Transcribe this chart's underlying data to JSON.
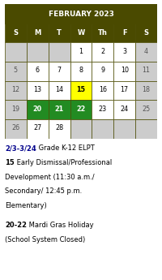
{
  "title": "FEBRUARY 2023",
  "title_bg": "#4a4a00",
  "title_color": "#ffffff",
  "days_header": [
    "S",
    "M",
    "T",
    "W",
    "Th",
    "F",
    "S"
  ],
  "header_bg": "#4a4a00",
  "header_color": "#ffffff",
  "weeks": [
    [
      null,
      null,
      null,
      1,
      2,
      3,
      4
    ],
    [
      5,
      6,
      7,
      8,
      9,
      10,
      11
    ],
    [
      12,
      13,
      14,
      15,
      16,
      17,
      18
    ],
    [
      19,
      20,
      21,
      22,
      23,
      24,
      25
    ],
    [
      26,
      27,
      28,
      null,
      null,
      null,
      null
    ]
  ],
  "cell_colors": {
    "15": "#ffff00",
    "20": "#228b22",
    "21": "#228b22",
    "22": "#228b22"
  },
  "cell_text_colors": {
    "15": "#000000",
    "20": "#ffffff",
    "21": "#ffffff",
    "22": "#ffffff"
  },
  "sunday_bg": "#cccccc",
  "saturday_bg": "#cccccc",
  "empty_bg": "#cccccc",
  "default_bg": "#ffffff",
  "grid_color": "#4a4a00",
  "note_lines": [
    [
      {
        "text": "2/3-3/24",
        "bold": true,
        "color": "#00008b"
      },
      {
        "text": " Grade K-12 ELPT",
        "bold": false,
        "color": "#000000"
      }
    ],
    [
      {
        "text": "15",
        "bold": true,
        "color": "#000000"
      },
      {
        "text": " Early Dismissal/Professional",
        "bold": false,
        "color": "#000000"
      }
    ],
    [
      {
        "text": "Development (11:30 a.m./",
        "bold": false,
        "color": "#000000"
      }
    ],
    [
      {
        "text": "Secondary/ 12:45 p.m.",
        "bold": false,
        "color": "#000000"
      }
    ],
    [
      {
        "text": "Elementary)",
        "bold": false,
        "color": "#000000"
      }
    ],
    [],
    [
      {
        "text": "20-22",
        "bold": true,
        "color": "#000000"
      },
      {
        "text": " Mardi Gras Holiday",
        "bold": false,
        "color": "#000000"
      }
    ],
    [
      {
        "text": "(School System Closed)",
        "bold": false,
        "color": "#000000"
      }
    ]
  ],
  "fig_width": 2.0,
  "fig_height": 3.45,
  "dpi": 100
}
